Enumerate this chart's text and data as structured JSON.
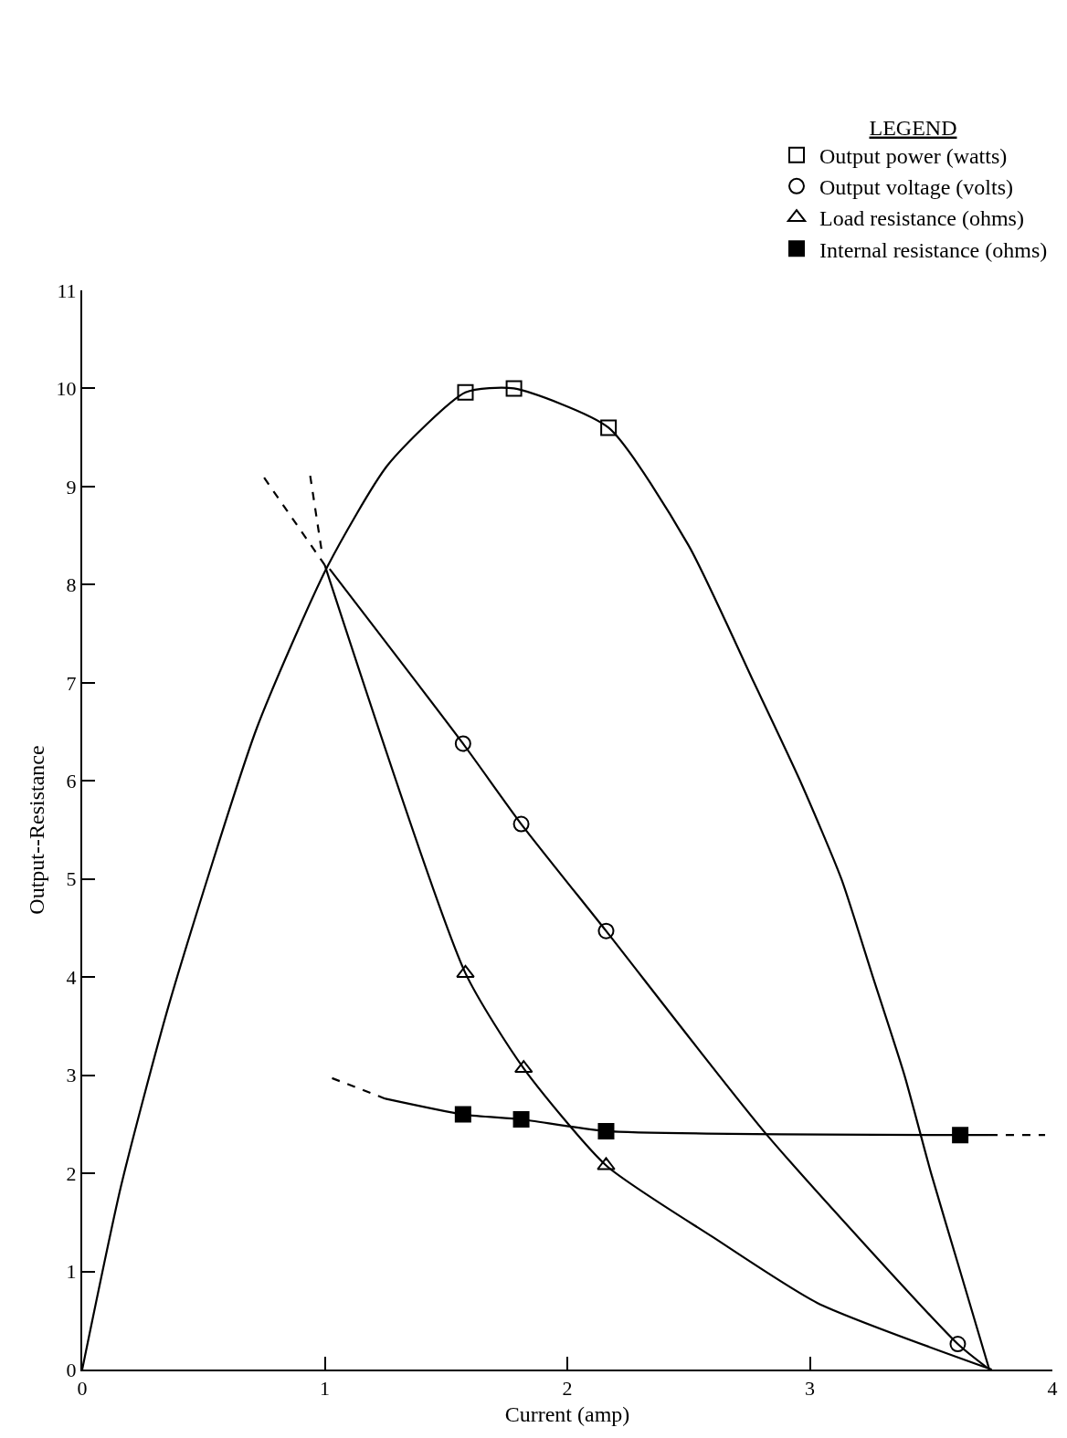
{
  "chart_data": {
    "type": "line",
    "xlabel": "Current (amp)",
    "ylabel": "Output--Resistance",
    "legend_title": "LEGEND",
    "xlim": [
      0,
      4
    ],
    "xticks": [
      0,
      1,
      2,
      3,
      4
    ],
    "ylim": [
      0,
      11
    ],
    "yticks": [
      0,
      1,
      2,
      3,
      4,
      5,
      6,
      7,
      8,
      9,
      10,
      11
    ],
    "legend": "top right",
    "series": [
      {
        "name": "Output power (watts)",
        "type": "scatter",
        "marker": "square-open",
        "color": "#000000",
        "x": [
          1.58,
          1.78,
          2.17
        ],
        "values": [
          9.96,
          10.0,
          9.6
        ]
      },
      {
        "name": "Output voltage (volts)",
        "type": "scatter",
        "marker": "circle-open",
        "color": "#000000",
        "x": [
          1.57,
          1.81,
          2.16,
          3.61
        ],
        "values": [
          6.38,
          5.56,
          4.47,
          0.26
        ]
      },
      {
        "name": "Load resistance (ohms)",
        "type": "scatter",
        "marker": "triangle-open",
        "color": "#000000",
        "x": [
          1.58,
          1.82,
          2.16
        ],
        "values": [
          4.04,
          3.07,
          2.08
        ]
      },
      {
        "name": "Internal resistance (ohms)",
        "type": "scatter",
        "marker": "square",
        "color": "#000000",
        "x": [
          1.57,
          1.81,
          2.16,
          3.62
        ],
        "values": [
          2.6,
          2.55,
          2.43,
          2.39
        ]
      },
      {
        "line_style": "solid",
        "color": "#000000",
        "x": [
          0,
          0.16,
          0.36,
          0.72,
          1.01,
          1.26,
          1.58,
          1.78,
          2.17,
          2.5,
          2.77,
          2.96,
          3.13,
          3.26,
          3.39,
          3.5,
          3.62,
          3.74
        ],
        "values": [
          0,
          1.87,
          3.74,
          6.54,
          8.18,
          9.22,
          9.96,
          10.0,
          9.6,
          8.4,
          7,
          6,
          5,
          4,
          3,
          2,
          1,
          0
        ]
      },
      {
        "line_style": "solid",
        "color": "#000000",
        "x": [
          1.02,
          1.57,
          1.81,
          2.16,
          2.82,
          3.61,
          3.73
        ],
        "values": [
          8.16,
          6.38,
          5.56,
          4.47,
          2.4,
          0.26,
          0.02
        ]
      },
      {
        "line_style": "dashed",
        "color": "#000000",
        "x": [
          0.75,
          1.0
        ],
        "values": [
          9.09,
          8.2
        ]
      },
      {
        "line_style": "solid",
        "color": "#000000",
        "x": [
          1.0,
          1.58,
          1.82,
          2.16,
          2.6,
          3.03,
          3.75
        ],
        "values": [
          8.2,
          4.04,
          3.07,
          2.08,
          1.35,
          0.68,
          0
        ]
      },
      {
        "line_style": "dashed",
        "color": "#000000",
        "x": [
          0.94,
          0.99
        ],
        "values": [
          9.11,
          8.3
        ]
      },
      {
        "line_style": "dashed",
        "color": "#000000",
        "x": [
          1.03,
          1.25
        ],
        "values": [
          2.97,
          2.76
        ]
      },
      {
        "line_style": "solid",
        "color": "#000000",
        "x": [
          1.25,
          1.57,
          1.81,
          2.16,
          3.62,
          3.74
        ],
        "values": [
          2.76,
          2.6,
          2.55,
          2.43,
          2.39,
          2.39
        ]
      },
      {
        "line_style": "dashed",
        "color": "#000000",
        "x": [
          3.74,
          3.97
        ],
        "values": [
          2.39,
          2.39
        ]
      }
    ]
  }
}
